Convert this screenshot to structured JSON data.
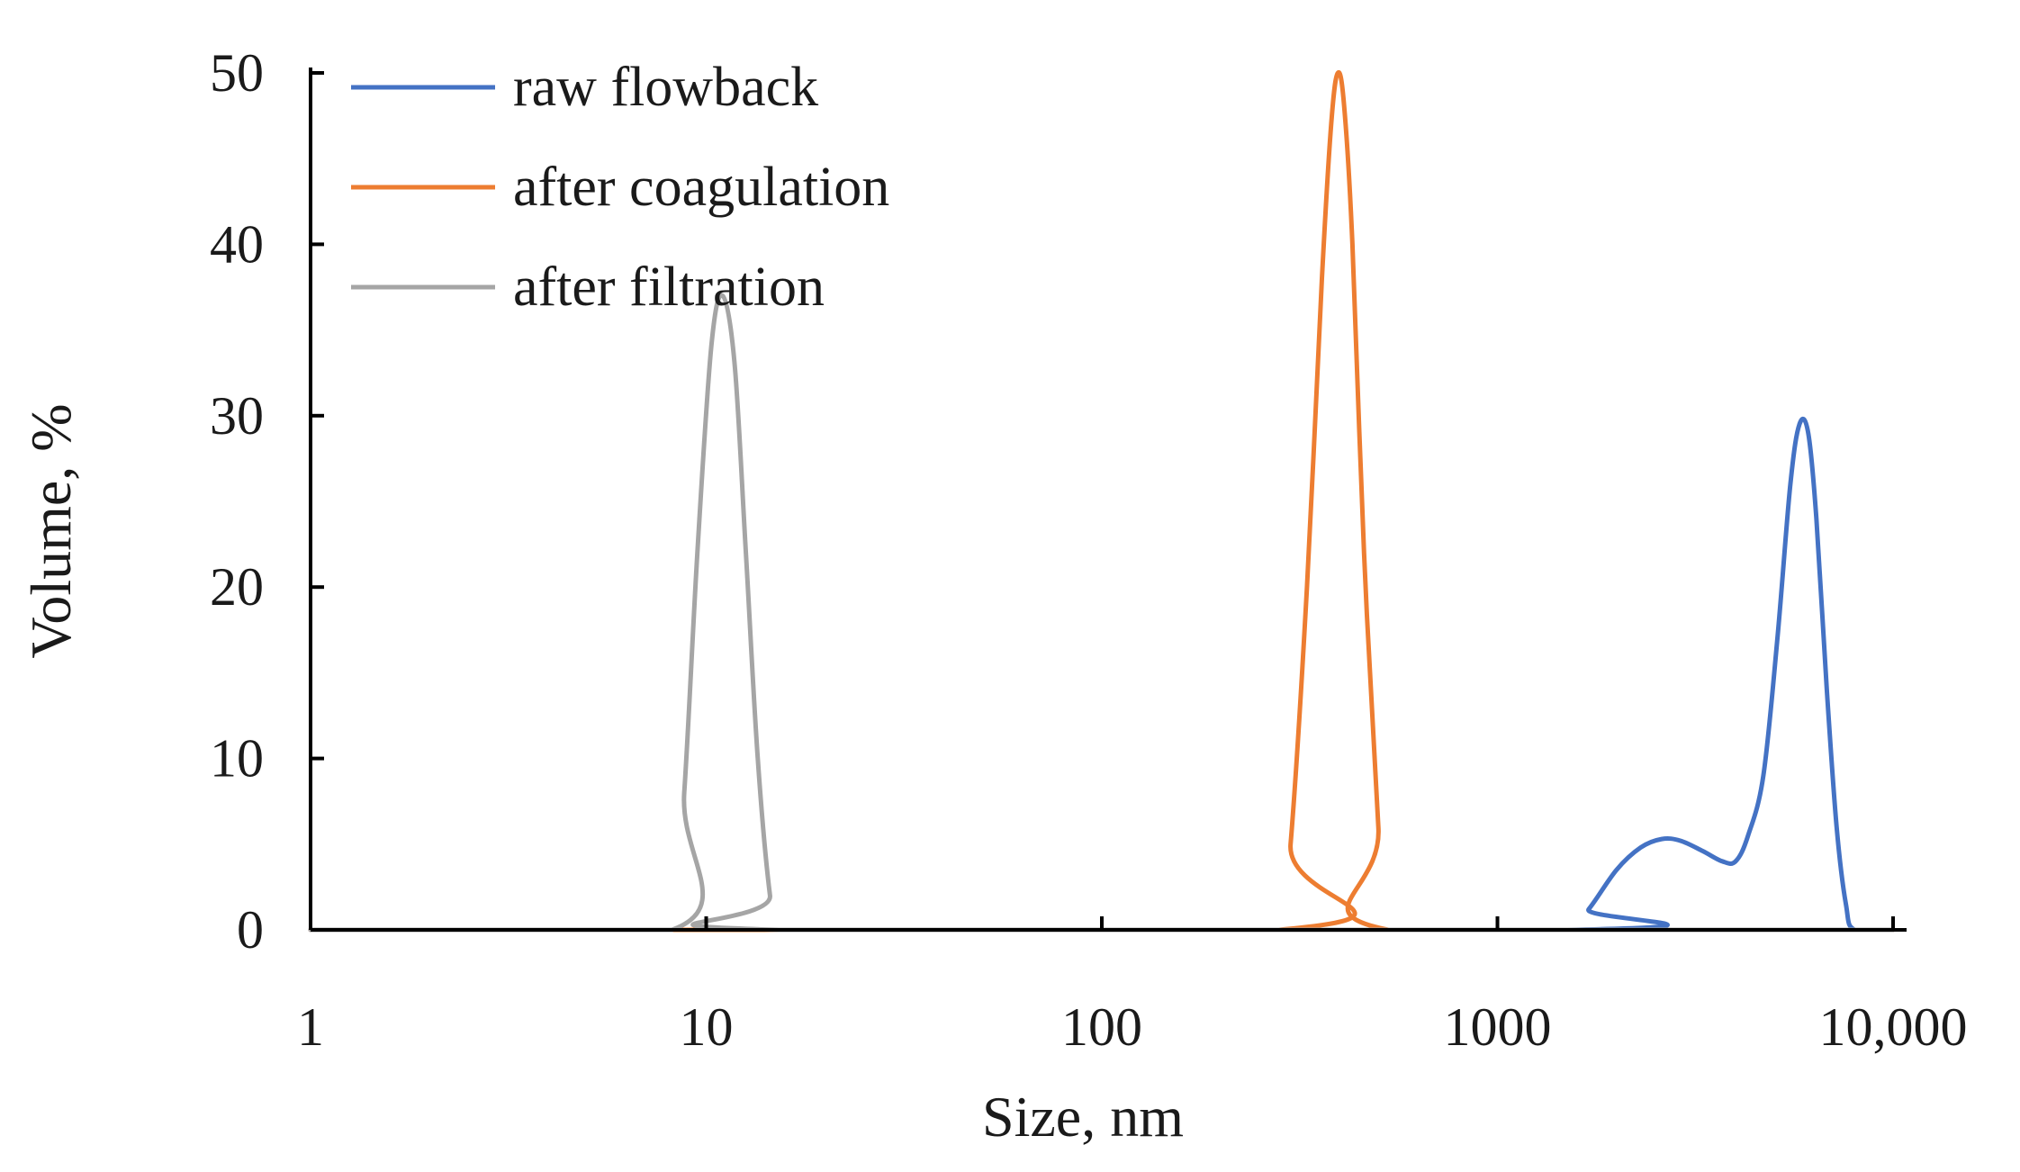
{
  "chart_data": {
    "type": "line",
    "xlabel": "Size, nm",
    "ylabel": "Volume, %",
    "xscale": "log",
    "xlim": [
      1,
      10000
    ],
    "ylim": [
      0,
      50
    ],
    "x_ticks": [
      1,
      10,
      100,
      1000,
      10000
    ],
    "x_tick_labels": [
      "1",
      "10",
      "100",
      "1000",
      "10,000"
    ],
    "y_ticks": [
      0,
      10,
      20,
      30,
      40,
      50
    ],
    "y_tick_labels": [
      "0",
      "10",
      "20",
      "30",
      "40",
      "50"
    ],
    "grid": false,
    "legend_position": "top-left",
    "series": [
      {
        "name": "raw flowback",
        "color": "#4472C4",
        "x": [
          1,
          1500,
          1700,
          2000,
          2300,
          2600,
          2900,
          3300,
          3700,
          4000,
          4300,
          4700,
          5100,
          5500,
          5800,
          6100,
          6400,
          6800,
          7200,
          7600,
          8000,
          10000
        ],
        "y": [
          0,
          0,
          1.2,
          3.5,
          4.8,
          5.3,
          5.2,
          4.6,
          4.0,
          4.0,
          5.5,
          9.0,
          17.0,
          26.0,
          29.5,
          29.0,
          24.0,
          14.0,
          6.0,
          1.5,
          0,
          0
        ]
      },
      {
        "name": "after coagulation",
        "color": "#ED7D31",
        "x": [
          1,
          280,
          300,
          330,
          360,
          380,
          395,
          410,
          430,
          460,
          500,
          530,
          10000
        ],
        "y": [
          0,
          0,
          5,
          20,
          38,
          47,
          50,
          48,
          40,
          22,
          6,
          0,
          0
        ]
      },
      {
        "name": "after filtration",
        "color": "#A5A5A5",
        "x": [
          1,
          8.2,
          8.8,
          9.5,
          10.3,
          11.0,
          11.8,
          12.6,
          13.5,
          14.5,
          15.3,
          10000
        ],
        "y": [
          0,
          0,
          8,
          22,
          34,
          37,
          33,
          22,
          10,
          2,
          0,
          0
        ]
      }
    ]
  }
}
